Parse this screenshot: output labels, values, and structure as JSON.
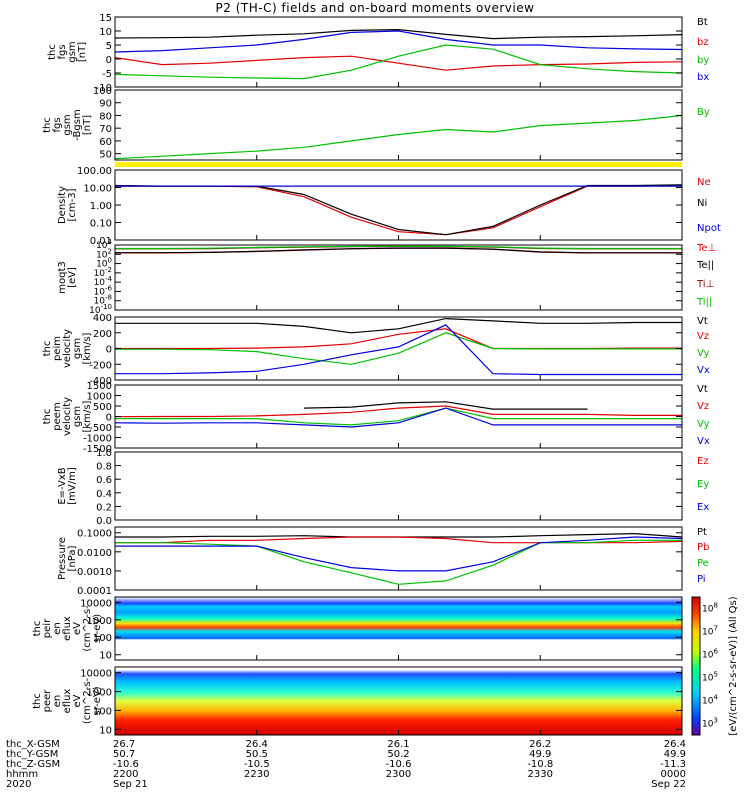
{
  "title": "P2 (TH-C) fields and on-board moments overview",
  "chart_data": [
    {
      "type": "line",
      "id": "fgs",
      "ylabel": [
        "thc",
        "fgs",
        "gsm",
        "[nT]"
      ],
      "ylim": [
        -10,
        15
      ],
      "yticks": [
        -10,
        -5,
        0,
        5,
        10,
        15
      ],
      "series": [
        {
          "name": "Bt",
          "color": "#000000",
          "values": [
            7.5,
            7.6,
            7.8,
            8.5,
            9.0,
            10.2,
            10.5,
            8.8,
            7.3,
            7.8,
            8.0,
            8.3,
            8.7
          ]
        },
        {
          "name": "bz",
          "color": "#e00000",
          "values": [
            0.5,
            -2.0,
            -1.5,
            -0.5,
            0.5,
            1.0,
            -1.5,
            -4.0,
            -2.5,
            -2.0,
            -1.8,
            -1.2,
            -1.0
          ]
        },
        {
          "name": "by",
          "color": "#00c000",
          "values": [
            -5.5,
            -6.0,
            -6.5,
            -6.8,
            -7.0,
            -4.0,
            1.0,
            5.0,
            3.5,
            -2.0,
            -3.5,
            -4.5,
            -5.0
          ]
        },
        {
          "name": "bx",
          "color": "#0000e0",
          "values": [
            2.5,
            3.0,
            4.0,
            5.0,
            7.0,
            9.5,
            10.0,
            7.0,
            5.0,
            5.0,
            4.0,
            3.6,
            3.4
          ]
        }
      ]
    },
    {
      "type": "line",
      "id": "fgs-by",
      "ylabel": [
        "thc",
        "fgs",
        "gsm",
        "-Bgsm",
        "[nT]"
      ],
      "ylim": [
        45,
        100
      ],
      "yticks": [
        50,
        60,
        70,
        80,
        90,
        100
      ],
      "series": [
        {
          "name": "By",
          "color": "#00c000",
          "values": [
            46,
            48,
            50,
            52,
            55,
            60,
            65,
            69,
            67,
            72,
            74,
            76,
            80
          ]
        }
      ]
    },
    {
      "type": "line",
      "id": "density",
      "scale": "log",
      "ylabel": [
        "Density",
        "[cm-3]"
      ],
      "ylim": [
        0.01,
        100
      ],
      "yticks": [
        "0.01",
        "0.10",
        "1.00",
        "10.00",
        "100.00"
      ],
      "series": [
        {
          "name": "Ne",
          "color": "#e00000",
          "values": [
            12,
            12,
            12,
            11,
            3,
            0.2,
            0.03,
            0.02,
            0.05,
            0.8,
            12,
            12,
            13
          ]
        },
        {
          "name": "Ni",
          "color": "#000000",
          "values": [
            13,
            12,
            12,
            12,
            4,
            0.3,
            0.04,
            0.02,
            0.06,
            1.0,
            13,
            13,
            14
          ]
        },
        {
          "name": "Npot",
          "color": "#0000e0",
          "values": [
            12,
            12,
            12,
            12,
            12,
            12,
            12,
            12,
            12,
            12,
            12,
            12,
            12
          ]
        }
      ]
    },
    {
      "type": "line",
      "id": "temperature",
      "scale": "log",
      "ylabel": [
        "moqt3",
        "[eV]"
      ],
      "ylim": [
        1e-10,
        10000
      ],
      "yticks": [
        "10^-10",
        "10^-8",
        "10^-6",
        "10^-4",
        "10^-2",
        "10^0",
        "10^2",
        "10^4"
      ],
      "series": [
        {
          "name": "Te⊥",
          "color": "#e00000",
          "values": [
            200,
            200,
            250,
            400,
            800,
            1500,
            2000,
            2000,
            1200,
            300,
            200,
            200,
            200
          ]
        },
        {
          "name": "Te||",
          "color": "#000000",
          "values": [
            220,
            220,
            260,
            450,
            900,
            1600,
            2100,
            2000,
            1300,
            320,
            210,
            210,
            210
          ]
        },
        {
          "name": "Ti⊥",
          "color": "#8b0000",
          "values": [
            1500,
            1500,
            1700,
            2500,
            3500,
            4500,
            4800,
            4500,
            3500,
            1800,
            1500,
            1500,
            1500
          ]
        },
        {
          "name": "Ti||",
          "color": "#00c000",
          "values": [
            1800,
            1800,
            2000,
            3000,
            4000,
            5000,
            5200,
            5000,
            4000,
            2100,
            1800,
            1800,
            1800
          ]
        }
      ]
    },
    {
      "type": "line",
      "id": "peim-velocity",
      "ylabel": [
        "thc",
        "peim",
        "velocity",
        "gsm",
        "[km/s]"
      ],
      "ylim": [
        -400,
        400
      ],
      "yticks": [
        -400,
        -200,
        0,
        200,
        400
      ],
      "series": [
        {
          "name": "Vt",
          "color": "#000000",
          "values": [
            320,
            320,
            320,
            320,
            280,
            200,
            250,
            380,
            350,
            320,
            320,
            330,
            330
          ]
        },
        {
          "name": "Vz",
          "color": "#e00000",
          "values": [
            0,
            0,
            0,
            5,
            20,
            60,
            180,
            250,
            0,
            0,
            0,
            5,
            5
          ]
        },
        {
          "name": "Vy",
          "color": "#00c000",
          "values": [
            -10,
            -10,
            -15,
            -40,
            -130,
            -200,
            -60,
            200,
            0,
            -5,
            -5,
            -5,
            -5
          ]
        },
        {
          "name": "Vx",
          "color": "#0000e0",
          "values": [
            -320,
            -320,
            -310,
            -290,
            -200,
            -80,
            20,
            300,
            -320,
            -330,
            -330,
            -330,
            -330
          ]
        }
      ]
    },
    {
      "type": "line",
      "id": "peem-velocity",
      "ylabel": [
        "thc",
        "peem",
        "velocity",
        "gsm",
        "[km/s]"
      ],
      "ylim": [
        -1500,
        1500
      ],
      "yticks": [
        -1500,
        -1000,
        -500,
        0,
        500,
        1000,
        1500
      ],
      "series": [
        {
          "name": "Vt",
          "color": "#000000",
          "values": [
            null,
            null,
            null,
            null,
            400,
            450,
            650,
            700,
            350,
            350,
            350,
            null,
            null
          ]
        },
        {
          "name": "Vz",
          "color": "#e00000",
          "values": [
            -10,
            0,
            0,
            30,
            100,
            200,
            400,
            500,
            100,
            100,
            100,
            50,
            50
          ]
        },
        {
          "name": "Vy",
          "color": "#00c000",
          "values": [
            -100,
            -100,
            -100,
            -100,
            -300,
            -400,
            -200,
            400,
            -100,
            -100,
            -100,
            -100,
            -100
          ]
        },
        {
          "name": "Vx",
          "color": "#0000e0",
          "values": [
            -300,
            -320,
            -300,
            -300,
            -400,
            -500,
            -300,
            400,
            -400,
            -400,
            -400,
            -400,
            -400
          ]
        }
      ]
    },
    {
      "type": "line",
      "id": "efield",
      "ylabel": [
        "E=-VxB",
        "[mV/m]"
      ],
      "ylim": [
        0,
        1
      ],
      "yticks": [
        "0.0",
        "0.2",
        "0.4",
        "0.6",
        "0.8",
        "1.0"
      ],
      "series": [
        {
          "name": "Ez",
          "color": "#e00000",
          "values": []
        },
        {
          "name": "Ey",
          "color": "#00c000",
          "values": []
        },
        {
          "name": "Ex",
          "color": "#0000e0",
          "values": []
        }
      ]
    },
    {
      "type": "line",
      "id": "pressure",
      "scale": "log",
      "ylabel": [
        "Pressure",
        "[nPa]"
      ],
      "ylim": [
        0.0001,
        0.2
      ],
      "yticks": [
        "0.0001",
        "0.0010",
        "0.0100",
        "0.1000"
      ],
      "series": [
        {
          "name": "Pt",
          "color": "#000000",
          "values": [
            0.06,
            0.06,
            0.065,
            0.065,
            0.07,
            0.06,
            0.06,
            0.06,
            0.06,
            0.07,
            0.08,
            0.09,
            0.06
          ]
        },
        {
          "name": "Pb",
          "color": "#e00000",
          "values": [
            0.03,
            0.03,
            0.04,
            0.04,
            0.05,
            0.06,
            0.06,
            0.05,
            0.03,
            0.03,
            0.03,
            0.03,
            0.035
          ]
        },
        {
          "name": "Pe",
          "color": "#00c000",
          "values": [
            0.03,
            0.03,
            0.025,
            0.02,
            0.003,
            0.0008,
            0.0002,
            0.0003,
            0.002,
            0.03,
            0.03,
            0.04,
            0.04
          ]
        },
        {
          "name": "Pi",
          "color": "#0000e0",
          "values": [
            0.02,
            0.02,
            0.02,
            0.02,
            0.005,
            0.0015,
            0.001,
            0.001,
            0.003,
            0.03,
            0.04,
            0.06,
            0.05
          ]
        }
      ]
    },
    {
      "type": "heatmap",
      "id": "peir-spec",
      "scale": "log",
      "ylabel": [
        "thc",
        "peir",
        "en",
        "eflux",
        "eV",
        "(cm^2-s-",
        "sr-eV)"
      ],
      "ylim": [
        5,
        20000
      ],
      "yticks": [
        "10",
        "100",
        "1000",
        "10000"
      ]
    },
    {
      "type": "heatmap",
      "id": "peer-spec",
      "scale": "log",
      "ylabel": [
        "thc",
        "peer",
        "en",
        "eflux",
        "eV",
        "(cm^2-s-",
        "sr-eV)"
      ],
      "ylim": [
        5,
        20000
      ],
      "yticks": [
        "10",
        "100",
        "1000",
        "10000"
      ]
    }
  ],
  "colorbar": {
    "label": "[eV/(cm^2-s-sr-eV)] (All Qs)",
    "ticks": [
      "10^3",
      "10^4",
      "10^5",
      "10^6",
      "10^7",
      "10^8"
    ]
  },
  "time_axis": {
    "rows": [
      {
        "label": "thc_X-GSM",
        "values": [
          "26.7",
          "26.4",
          "26.1",
          "26.2",
          "26.4"
        ]
      },
      {
        "label": "thc_Y-GSM",
        "values": [
          "50.7",
          "50.5",
          "50.2",
          "49.9",
          "49.9"
        ]
      },
      {
        "label": "thc_Z-GSM",
        "values": [
          "-10.6",
          "-10.5",
          "-10.6",
          "-10.8",
          "-11.3"
        ]
      },
      {
        "label": "hhmm",
        "values": [
          "2200",
          "2230",
          "2300",
          "2330",
          "0000"
        ]
      }
    ],
    "footer": {
      "year": "2020",
      "start_date": "Sep 21",
      "end_date": "Sep 22"
    }
  }
}
